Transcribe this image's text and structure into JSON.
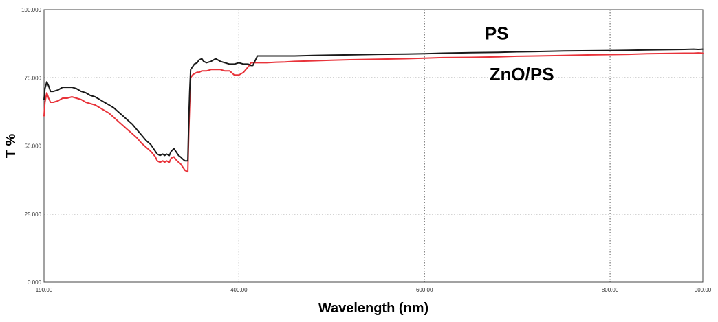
{
  "chart_data": {
    "type": "line",
    "title": "",
    "xlabel": "Wavelength (nm)",
    "ylabel": "T %",
    "xlim": [
      190,
      900
    ],
    "ylim": [
      0,
      100
    ],
    "x_ticks": [
      190,
      400,
      600,
      800,
      900
    ],
    "x_tick_labels": [
      "190.00",
      "400.00",
      "600.00",
      "800.00",
      "900.00"
    ],
    "y_ticks": [
      0,
      25,
      50,
      75,
      100
    ],
    "y_tick_labels": [
      "0.000",
      "25.000",
      "50.000",
      "75.000",
      "100.000"
    ],
    "grid": true,
    "series": [
      {
        "name": "PS",
        "color": "#1a1a1a",
        "x": [
          190,
          191,
          193,
          195,
          197,
          200,
          205,
          210,
          215,
          220,
          225,
          230,
          235,
          240,
          245,
          250,
          255,
          260,
          265,
          270,
          275,
          280,
          285,
          290,
          295,
          300,
          305,
          310,
          312,
          315,
          318,
          320,
          322,
          325,
          327,
          330,
          332,
          335,
          337,
          340,
          342,
          345,
          346,
          347,
          348,
          350,
          352,
          355,
          357,
          360,
          362,
          365,
          370,
          375,
          380,
          385,
          390,
          395,
          400,
          405,
          410,
          413,
          415,
          420,
          425,
          430,
          440,
          450,
          460,
          480,
          500,
          520,
          550,
          580,
          600,
          620,
          650,
          680,
          700,
          720,
          750,
          780,
          800,
          820,
          840,
          860,
          880,
          890,
          895,
          900
        ],
        "y": [
          67,
          71,
          73.5,
          72,
          70,
          70,
          70.5,
          71.5,
          71.5,
          71.5,
          71,
          70,
          69.5,
          68.5,
          68,
          67,
          66,
          65,
          64,
          62.5,
          61,
          59.5,
          58,
          56,
          54,
          52,
          50.5,
          48,
          47,
          46.5,
          47,
          46.5,
          47,
          46.5,
          48,
          49,
          48,
          46.5,
          46,
          45,
          44.5,
          44.5,
          60,
          70,
          78,
          79,
          80,
          80.5,
          81.5,
          82,
          81,
          80.5,
          81,
          82,
          81,
          80.5,
          80,
          80,
          80.5,
          80,
          80,
          79.5,
          79.5,
          83,
          83,
          83,
          83,
          83,
          83,
          83.2,
          83.3,
          83.4,
          83.6,
          83.7,
          83.8,
          84,
          84.2,
          84.3,
          84.5,
          84.6,
          84.8,
          84.9,
          85,
          85.1,
          85.2,
          85.3,
          85.4,
          85.5,
          85.4,
          85.5
        ]
      },
      {
        "name": "ZnO/PS",
        "color": "#e8333a",
        "x": [
          190,
          191,
          193,
          195,
          197,
          200,
          205,
          210,
          215,
          220,
          225,
          230,
          235,
          240,
          245,
          250,
          255,
          260,
          265,
          270,
          275,
          280,
          285,
          290,
          295,
          300,
          305,
          310,
          312,
          315,
          318,
          320,
          322,
          325,
          327,
          330,
          332,
          335,
          337,
          340,
          342,
          345,
          346,
          347,
          348,
          350,
          352,
          355,
          357,
          360,
          362,
          365,
          370,
          375,
          380,
          385,
          390,
          395,
          400,
          405,
          410,
          413,
          415,
          420,
          425,
          430,
          440,
          450,
          460,
          480,
          500,
          520,
          550,
          580,
          600,
          620,
          650,
          680,
          700,
          720,
          750,
          780,
          800,
          820,
          840,
          860,
          880,
          890,
          895,
          900
        ],
        "y": [
          61,
          66,
          69.5,
          67.5,
          66,
          66,
          66.5,
          67.5,
          67.5,
          68,
          67.5,
          67,
          66,
          65.5,
          65,
          64,
          63,
          62,
          60.5,
          59,
          57.5,
          56,
          54.5,
          53,
          51,
          49.5,
          48,
          46,
          44.5,
          44,
          44.5,
          44,
          44.5,
          44,
          45.5,
          46,
          45,
          44,
          43.5,
          42,
          41,
          40.5,
          55,
          65,
          75,
          76,
          76.5,
          77,
          77,
          77.5,
          77.5,
          77.5,
          78,
          78,
          78,
          77.5,
          77.5,
          76,
          76,
          77,
          79,
          80.5,
          80.5,
          80.5,
          80.5,
          80.5,
          80.7,
          80.8,
          81,
          81.2,
          81.4,
          81.6,
          81.8,
          82,
          82.2,
          82.4,
          82.5,
          82.7,
          82.9,
          83,
          83.2,
          83.4,
          83.5,
          83.6,
          83.8,
          83.9,
          84,
          84,
          84.1,
          84
        ]
      }
    ],
    "annotations": [
      {
        "text": "PS",
        "x": 665,
        "y": 89,
        "series": "PS"
      },
      {
        "text": "ZnO/PS",
        "x": 670,
        "y": 74,
        "series": "ZnO/PS"
      }
    ]
  }
}
